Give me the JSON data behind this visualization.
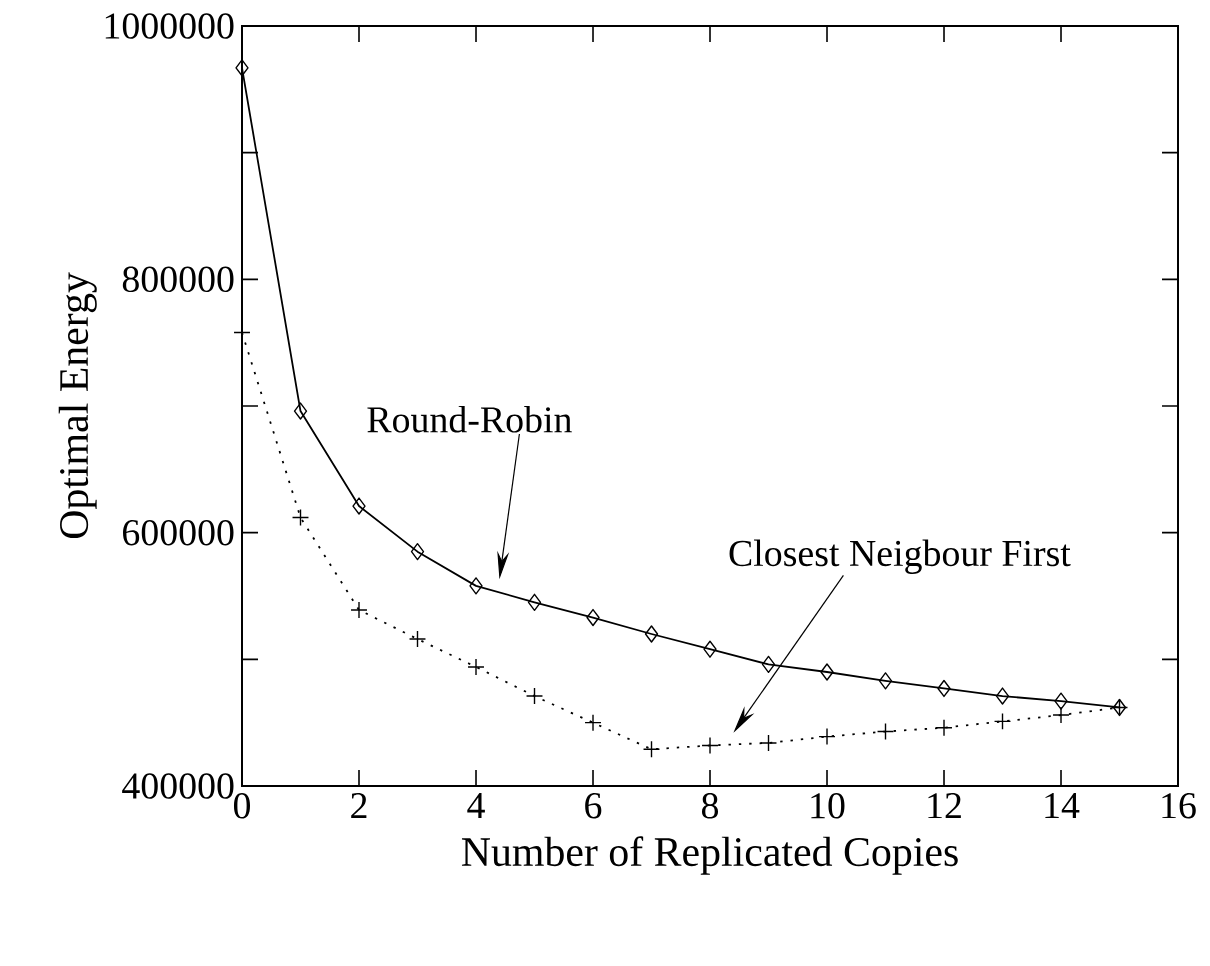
{
  "chart_data": {
    "type": "line",
    "xlabel": "Number of Replicated Copies",
    "ylabel": "Optimal Energy",
    "x": [
      0,
      1,
      2,
      3,
      4,
      5,
      6,
      7,
      8,
      9,
      10,
      11,
      12,
      13,
      14,
      15
    ],
    "series": [
      {
        "color": "#000000",
        "marker": "diamond",
        "line_style": "solid",
        "values": [
          967000,
          696000,
          621000,
          585000,
          558000,
          545000,
          533000,
          520000,
          508000,
          496000,
          490000,
          483000,
          477000,
          471000,
          467000,
          462000
        ]
      },
      {
        "color": "#000000",
        "marker": "cross",
        "line_style": "dotted",
        "values": [
          758000,
          612000,
          539000,
          516000,
          494000,
          471000,
          450000,
          429000,
          432000,
          434000,
          439000,
          443000,
          446000,
          451000,
          456000,
          462000
        ]
      }
    ],
    "xlim": [
      0,
      16
    ],
    "ylim": [
      400000,
      1000000
    ],
    "xticks": [
      0,
      2,
      4,
      6,
      8,
      10,
      12,
      14,
      16
    ],
    "yticks": [
      400000,
      {
        "value": 500000,
        "label": null
      },
      600000,
      {
        "value": 700000,
        "label": null
      },
      800000,
      {
        "value": 900000,
        "label": null
      },
      1000000
    ],
    "grid": false,
    "annotations": [
      "Round-Robin",
      "Closest Neigbour First"
    ]
  }
}
